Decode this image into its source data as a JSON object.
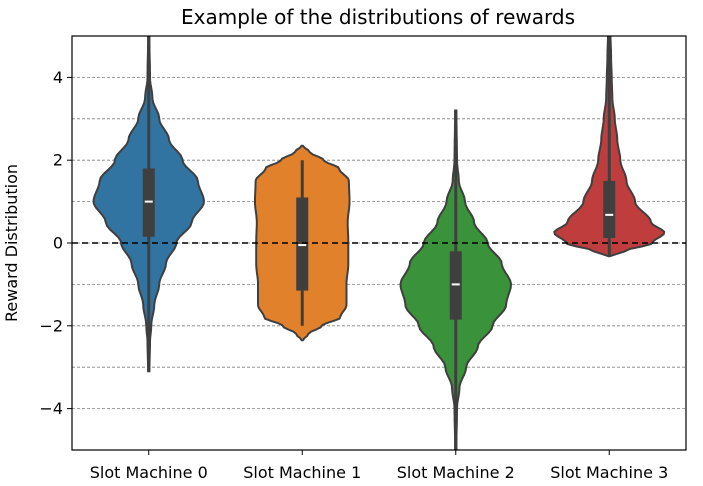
{
  "chart_data": {
    "type": "violin",
    "title": "Example of the distributions of rewards",
    "xlabel": "",
    "ylabel": "Reward Distribution",
    "ylim": [
      -5,
      5
    ],
    "yticks": [
      -4,
      -2,
      0,
      2,
      4
    ],
    "ytick_labels": [
      "−4",
      "−2",
      "0",
      "2",
      "4"
    ],
    "grid": {
      "axis": "y",
      "style": "dashed",
      "minor_step": 1
    },
    "reference_line": {
      "y": 0,
      "style": "dashed",
      "color": "#000000"
    },
    "categories": [
      "Slot Machine 0",
      "Slot Machine 1",
      "Slot Machine 2",
      "Slot Machine 3"
    ],
    "colors": [
      "#3274a1",
      "#e1812c",
      "#3a923a",
      "#c03d3e"
    ],
    "series": [
      {
        "category": "Slot Machine 0",
        "min": -3.1,
        "q1": 0.15,
        "median": 1.0,
        "q3": 1.8,
        "max": 5.0,
        "profile": [
          [
            -3.1,
            0.01
          ],
          [
            -2.4,
            0.02
          ],
          [
            -2.0,
            0.04
          ],
          [
            -1.5,
            0.09
          ],
          [
            -1.0,
            0.17
          ],
          [
            -0.5,
            0.28
          ],
          [
            0.0,
            0.45
          ],
          [
            0.5,
            0.7
          ],
          [
            1.0,
            0.9
          ],
          [
            1.5,
            0.8
          ],
          [
            2.0,
            0.55
          ],
          [
            2.5,
            0.33
          ],
          [
            3.0,
            0.17
          ],
          [
            3.5,
            0.06
          ],
          [
            4.0,
            0.02
          ],
          [
            5.0,
            0.01
          ]
        ]
      },
      {
        "category": "Slot Machine 1",
        "min": -2.0,
        "q1": -1.15,
        "median": -0.05,
        "q3": 1.1,
        "max": 2.0,
        "profile": [
          [
            -2.35,
            0.01
          ],
          [
            -2.2,
            0.1
          ],
          [
            -2.0,
            0.32
          ],
          [
            -1.8,
            0.62
          ],
          [
            -1.5,
            0.72
          ],
          [
            -1.0,
            0.72
          ],
          [
            -0.5,
            0.75
          ],
          [
            0.0,
            0.75
          ],
          [
            0.5,
            0.74
          ],
          [
            1.0,
            0.77
          ],
          [
            1.5,
            0.76
          ],
          [
            1.8,
            0.6
          ],
          [
            2.0,
            0.35
          ],
          [
            2.2,
            0.12
          ],
          [
            2.35,
            0.01
          ]
        ]
      },
      {
        "category": "Slot Machine 2",
        "min": -5.0,
        "q1": -1.85,
        "median": -1.0,
        "q3": -0.2,
        "max": 3.2,
        "profile": [
          [
            -5.0,
            0.01
          ],
          [
            -4.0,
            0.02
          ],
          [
            -3.5,
            0.06
          ],
          [
            -3.0,
            0.17
          ],
          [
            -2.5,
            0.36
          ],
          [
            -2.0,
            0.6
          ],
          [
            -1.5,
            0.82
          ],
          [
            -1.0,
            0.9
          ],
          [
            -0.5,
            0.75
          ],
          [
            0.0,
            0.52
          ],
          [
            0.5,
            0.3
          ],
          [
            1.0,
            0.15
          ],
          [
            1.5,
            0.05
          ],
          [
            2.0,
            0.02
          ],
          [
            3.2,
            0.01
          ]
        ]
      },
      {
        "category": "Slot Machine 3",
        "min": -0.3,
        "q1": 0.12,
        "median": 0.68,
        "q3": 1.5,
        "max": 5.0,
        "profile": [
          [
            -0.32,
            0.01
          ],
          [
            -0.2,
            0.25
          ],
          [
            0.0,
            0.7
          ],
          [
            0.25,
            0.9
          ],
          [
            0.5,
            0.68
          ],
          [
            1.0,
            0.42
          ],
          [
            1.5,
            0.28
          ],
          [
            2.0,
            0.18
          ],
          [
            2.5,
            0.13
          ],
          [
            3.0,
            0.09
          ],
          [
            3.5,
            0.05
          ],
          [
            4.0,
            0.04
          ],
          [
            4.5,
            0.03
          ],
          [
            5.0,
            0.02
          ]
        ]
      }
    ]
  }
}
